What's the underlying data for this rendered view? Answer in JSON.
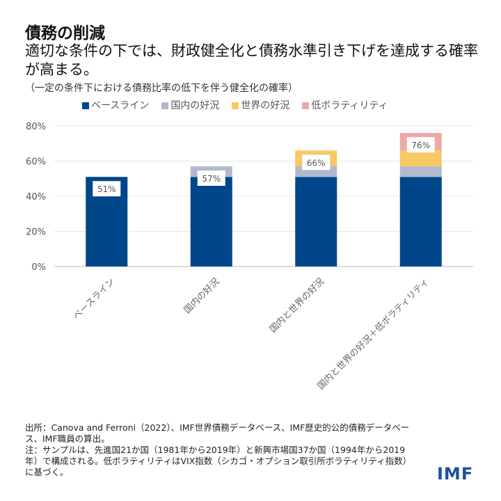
{
  "title": "債務の削減",
  "subtitle": "適切な条件の下では、財政健全化と債務水準引き下げを達成する確率が高まる。",
  "note": "（一定の条件下における債務比率の低下を伴う健全化の確率）",
  "chart_data": {
    "type": "bar",
    "stacked": true,
    "categories": [
      "ベースライン",
      "国内の好況",
      "国内と世界の好況",
      "国内と世界の好況＋低ボラティリティ"
    ],
    "series": [
      {
        "name": "ベースライン",
        "color": "#00468b",
        "values": [
          51,
          51,
          51,
          51
        ]
      },
      {
        "name": "国内の好況",
        "color": "#b2b9cf",
        "values": [
          0,
          6,
          6,
          6
        ]
      },
      {
        "name": "世界の好況",
        "color": "#f6c964",
        "values": [
          0,
          0,
          9,
          9
        ]
      },
      {
        "name": "低ボラティリティ",
        "color": "#eea9a6",
        "values": [
          0,
          0,
          0,
          10
        ]
      }
    ],
    "totals_labels": [
      "51%",
      "57%",
      "66%",
      "76%"
    ],
    "yticks": [
      "0%",
      "20%",
      "40%",
      "60%",
      "80%"
    ],
    "ylim": [
      0,
      80
    ],
    "grid": true,
    "legend": "top"
  },
  "footer": {
    "source": "出所：Canova and Ferroni（2022）、IMF世界債務データベース、IMF歴史的公的債務データベース、IMF職員の算出。",
    "note": "注：サンプルは、先進国21か国（1981年から2019年）と新興市場国37か国（1994年から2019年）で構成される。低ボラティリティはVIX指数（シカゴ・オプション取引所ボラティリティ指数）に基づく。"
  },
  "logo": "IMF"
}
